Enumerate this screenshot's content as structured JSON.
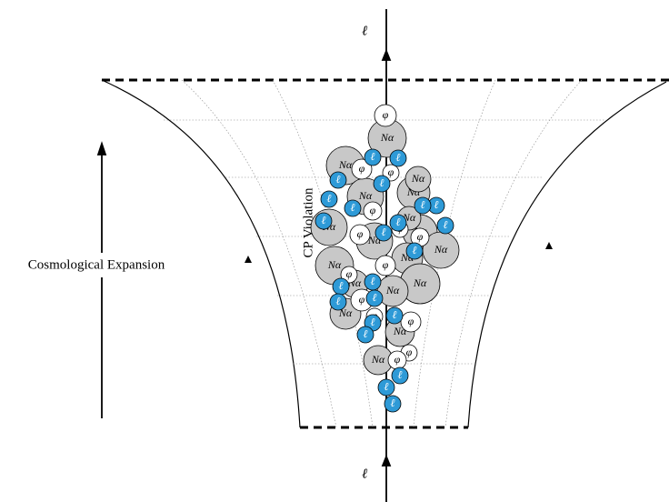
{
  "labels": {
    "top_lepton": "ℓ",
    "bottom_lepton": "ℓ",
    "expansion": "Cosmological Expansion",
    "cp_violation": "CP Violation"
  },
  "species": {
    "heavy_neutrino": "Nα",
    "higgs": "φ",
    "lepton": "ℓ"
  }
}
